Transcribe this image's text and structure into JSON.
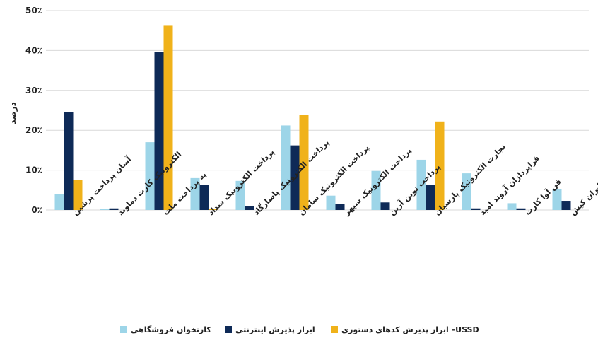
{
  "chart_data": {
    "type": "bar",
    "ylabel": "درصد",
    "ylim": [
      0,
      50
    ],
    "yticks": [
      {
        "value": 0,
        "label": "0٪"
      },
      {
        "value": 10,
        "label": "10٪"
      },
      {
        "value": 20,
        "label": "20٪"
      },
      {
        "value": 30,
        "label": "30٪"
      },
      {
        "value": 40,
        "label": "40٪"
      },
      {
        "value": 50,
        "label": "50٪"
      }
    ],
    "grid": true,
    "legend_position": "bottom",
    "categories": [
      "آسان پرداخت پرشین",
      "الکترونیک کارت دماوند",
      "به پرداخت ملت",
      "پرداخت الکترونیک سداد",
      "پرداخت الکترونیک پاسارگاد",
      "پرداخت الکترونیک سامان",
      "پرداخت الکترونیک سپهر",
      "پرداخت نوین آرین",
      "تجارت الکترونیک پارسیان",
      "فراپردازان آروند امید",
      "فن آوا کارت",
      "کارت اعتباری ایران کیش"
    ],
    "series": [
      {
        "name": "کارتخوان فروشگاهی",
        "color": "#9dd5e8",
        "values": [
          4.0,
          0.3,
          17.0,
          8.0,
          7.3,
          21.2,
          3.6,
          9.8,
          12.6,
          9.2,
          1.7,
          5.2
        ]
      },
      {
        "name": "ابزار پذیرش اینترنتی",
        "color": "#0e2a57",
        "values": [
          24.5,
          0.4,
          39.6,
          6.3,
          1.0,
          16.2,
          1.5,
          1.9,
          6.3,
          0.4,
          0.4,
          2.3
        ]
      },
      {
        "name": "ابزار پذیرش کدهای دستوری –USSD",
        "color": "#f0b21a",
        "values": [
          7.5,
          0,
          46.2,
          0.3,
          0,
          23.8,
          0,
          0,
          22.2,
          0,
          0,
          0
        ]
      }
    ]
  }
}
